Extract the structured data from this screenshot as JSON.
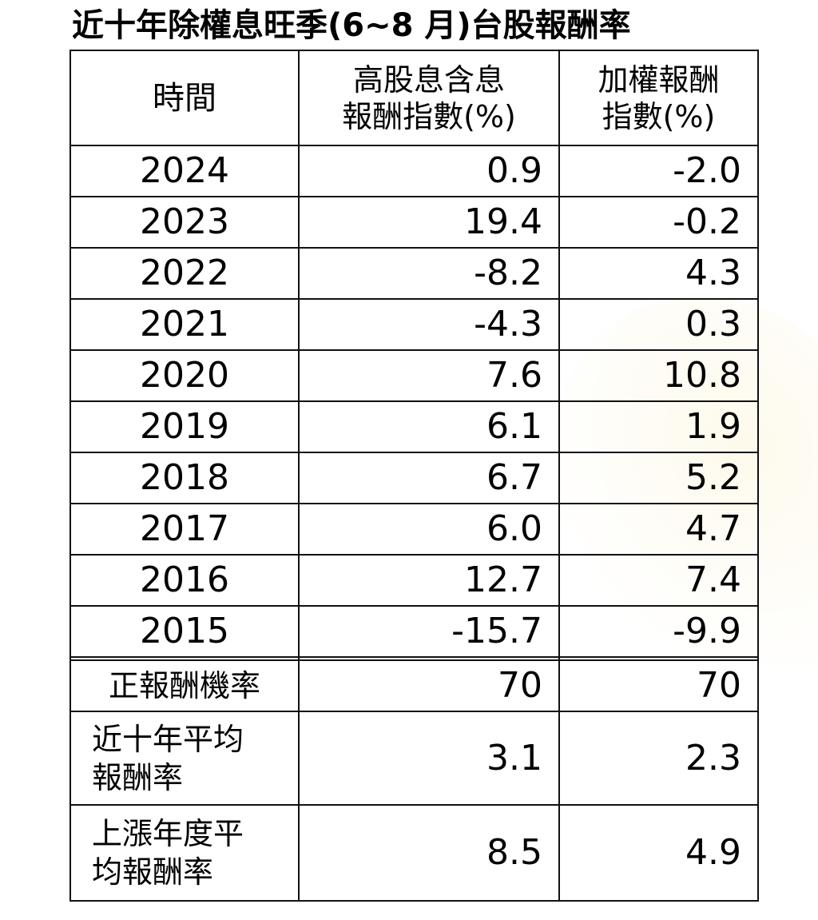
{
  "title": "近十年除權息旺季(6~8 月)台股報酬率",
  "table": {
    "headers": {
      "time": "時間",
      "high_dividend_line1": "高股息含息",
      "high_dividend_line2": "報酬指數(%)",
      "weighted_line1": "加權報酬",
      "weighted_line2": "指數(%)"
    },
    "rows": [
      {
        "year": "2024",
        "high_dividend": "0.9",
        "weighted": "-2.0"
      },
      {
        "year": "2023",
        "high_dividend": "19.4",
        "weighted": "-0.2"
      },
      {
        "year": "2022",
        "high_dividend": "-8.2",
        "weighted": "4.3"
      },
      {
        "year": "2021",
        "high_dividend": "-4.3",
        "weighted": "0.3"
      },
      {
        "year": "2020",
        "high_dividend": "7.6",
        "weighted": "10.8"
      },
      {
        "year": "2019",
        "high_dividend": "6.1",
        "weighted": "1.9"
      },
      {
        "year": "2018",
        "high_dividend": "6.7",
        "weighted": "5.2"
      },
      {
        "year": "2017",
        "high_dividend": "6.0",
        "weighted": "4.7"
      },
      {
        "year": "2016",
        "high_dividend": "12.7",
        "weighted": "7.4"
      },
      {
        "year": "2015",
        "high_dividend": "-15.7",
        "weighted": "-9.9"
      }
    ],
    "summary": [
      {
        "label_line1": "正報酬機率",
        "label_line2": "",
        "high_dividend": "70",
        "weighted": "70"
      },
      {
        "label_line1": "近十年平均",
        "label_line2": "報酬率",
        "high_dividend": "3.1",
        "weighted": "2.3"
      },
      {
        "label_line1": "上漲年度平",
        "label_line2": "均報酬率",
        "high_dividend": "8.5",
        "weighted": "4.9"
      }
    ]
  },
  "colors": {
    "border": "#111111",
    "text": "#000000",
    "background": "#ffffff",
    "watermark": "#faf0c8"
  }
}
